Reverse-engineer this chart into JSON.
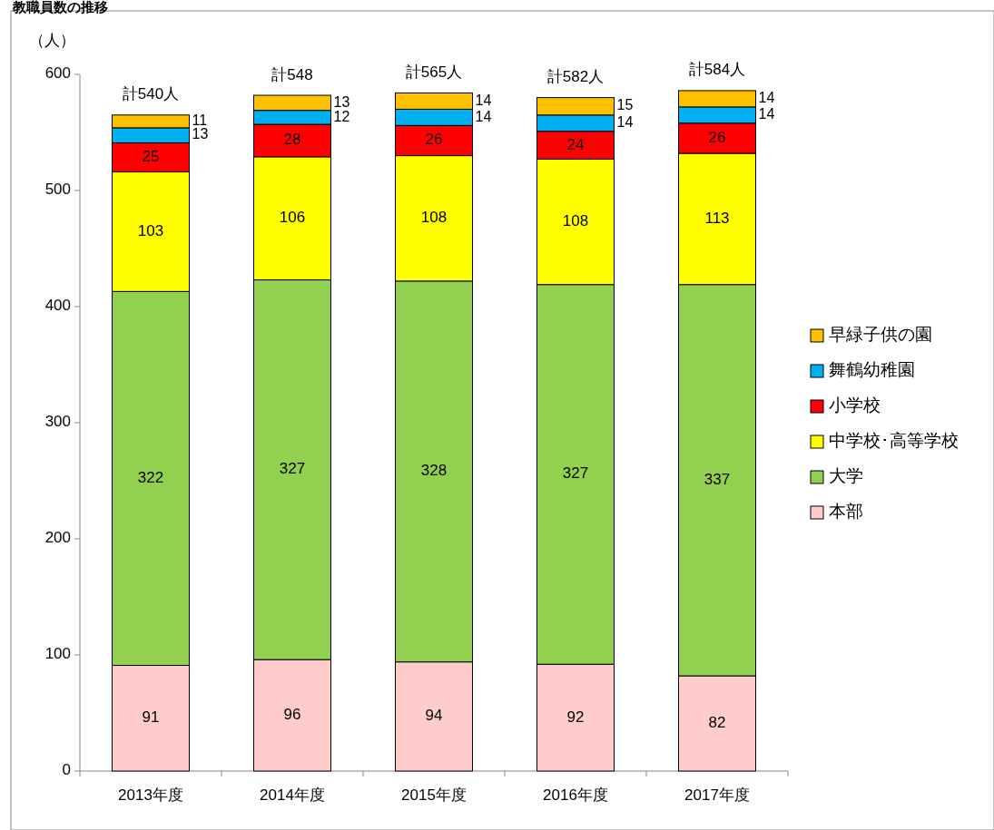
{
  "chart_data": {
    "type": "bar",
    "title": "教職員数の推移",
    "ylabel": "（人）",
    "stacked": true,
    "data_labels": true,
    "grid": false,
    "legend": "right",
    "categories": [
      "2013年度",
      "2014年度",
      "2015年度",
      "2016年度",
      "2017年度"
    ],
    "ylim": [
      0,
      600
    ],
    "yticks": [
      0,
      100,
      200,
      300,
      400,
      500,
      600
    ],
    "totals": [
      "計540人",
      "計548",
      "計565人",
      "計582人",
      "計584人"
    ],
    "series": [
      {
        "name": "本部",
        "color": "#ffcccc",
        "values": [
          91,
          96,
          94,
          92,
          82
        ]
      },
      {
        "name": "大学",
        "color": "#92d050",
        "values": [
          322,
          327,
          328,
          327,
          337
        ]
      },
      {
        "name": "中学校･高等学校",
        "color": "#ffff00",
        "values": [
          103,
          106,
          108,
          108,
          113
        ]
      },
      {
        "name": "小学校",
        "color": "#ff0000",
        "values": [
          25,
          28,
          26,
          24,
          26
        ]
      },
      {
        "name": "舞鶴幼稚園",
        "color": "#00b0f0",
        "values": [
          13,
          12,
          14,
          14,
          14
        ]
      },
      {
        "name": "早緑子供の園",
        "color": "#ffc000",
        "values": [
          11,
          13,
          14,
          15,
          14
        ]
      }
    ]
  }
}
